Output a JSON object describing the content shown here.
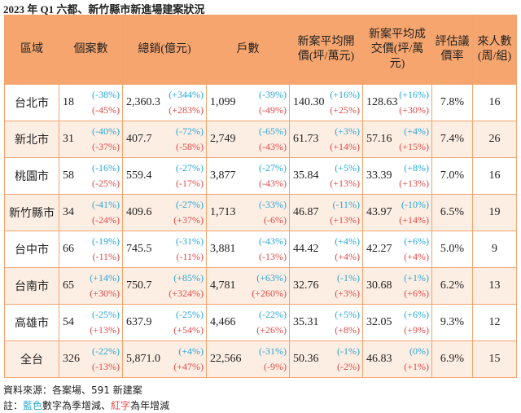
{
  "title": "2023 年 Q1 六都、新竹縣市新進場建案狀況",
  "table": {
    "header": [
      "區域",
      "個案數",
      "總銷(億元)",
      "戶數",
      "新案平均開價(坪/萬元)",
      "新案平均成交價(坪/萬元)",
      "評估議價率",
      "來人數(周/組)"
    ],
    "rows": [
      {
        "region": "台北市",
        "cells": [
          {
            "value": "18",
            "qoq": "(-38%)",
            "yoy": "(-45%)"
          },
          {
            "value": "2,360.3",
            "qoq": "(+344%)",
            "yoy": "(+283%)"
          },
          {
            "value": "1,099",
            "qoq": "(-39%)",
            "yoy": "(-49%)"
          },
          {
            "value": "140.30",
            "qoq": "(+16%)",
            "yoy": "(+25%)"
          },
          {
            "value": "128.63",
            "qoq": "(+16%)",
            "yoy": "(+30%)"
          }
        ],
        "rate": "7.8%",
        "visitors": "16"
      },
      {
        "region": "新北市",
        "cells": [
          {
            "value": "31",
            "qoq": "(-40%)",
            "yoy": "(-37%)"
          },
          {
            "value": "407.7",
            "qoq": "(-72%)",
            "yoy": "(-58%)"
          },
          {
            "value": "2,749",
            "qoq": "(-65%)",
            "yoy": "(-43%)"
          },
          {
            "value": "61.73",
            "qoq": "(+3%)",
            "yoy": "(+14%)"
          },
          {
            "value": "57.16",
            "qoq": "(+4%)",
            "yoy": "(+15%)"
          }
        ],
        "rate": "7.4%",
        "visitors": "26"
      },
      {
        "region": "桃園市",
        "cells": [
          {
            "value": "58",
            "qoq": "(-16%)",
            "yoy": "(-25%)"
          },
          {
            "value": "559.4",
            "qoq": "(-27%)",
            "yoy": "(-17%)"
          },
          {
            "value": "3,877",
            "qoq": "(-27%)",
            "yoy": "(-43%)"
          },
          {
            "value": "35.84",
            "qoq": "(+5%)",
            "yoy": "(+13%)"
          },
          {
            "value": "33.39",
            "qoq": "(+8%)",
            "yoy": "(+13%)"
          }
        ],
        "rate": "7.0%",
        "visitors": "16"
      },
      {
        "region": "新竹縣市",
        "cells": [
          {
            "value": "34",
            "qoq": "(-41%)",
            "yoy": "(-24%)"
          },
          {
            "value": "409.6",
            "qoq": "(-27%)",
            "yoy": "(+37%)"
          },
          {
            "value": "1,713",
            "qoq": "(-33%)",
            "yoy": "(-6%)"
          },
          {
            "value": "46.87",
            "qoq": "(-11%)",
            "yoy": "(+13%)"
          },
          {
            "value": "43.97",
            "qoq": "(-10%)",
            "yoy": "(+14%)"
          }
        ],
        "rate": "6.5%",
        "visitors": "19"
      },
      {
        "region": "台中市",
        "cells": [
          {
            "value": "66",
            "qoq": "(-19%)",
            "yoy": "(-11%)"
          },
          {
            "value": "745.5",
            "qoq": "(-31%)",
            "yoy": "(-11%)"
          },
          {
            "value": "3,881",
            "qoq": "(-43%)",
            "yoy": "(-13%)"
          },
          {
            "value": "44.42",
            "qoq": "(+4%)",
            "yoy": "(+4%)"
          },
          {
            "value": "42.27",
            "qoq": "(+6%)",
            "yoy": "(+4%)"
          }
        ],
        "rate": "5.0%",
        "visitors": "9"
      },
      {
        "region": "台南市",
        "cells": [
          {
            "value": "65",
            "qoq": "(+14%)",
            "yoy": "(+30%)"
          },
          {
            "value": "750.7",
            "qoq": "(+85%)",
            "yoy": "(+324%)"
          },
          {
            "value": "4,781",
            "qoq": "(+63%)",
            "yoy": "(+260%)"
          },
          {
            "value": "32.76",
            "qoq": "(-1%)",
            "yoy": "(+3%)"
          },
          {
            "value": "30.68",
            "qoq": "(+1%)",
            "yoy": "(+6%)"
          }
        ],
        "rate": "6.2%",
        "visitors": "13"
      },
      {
        "region": "高雄市",
        "cells": [
          {
            "value": "54",
            "qoq": "(-25%)",
            "yoy": "(+13%)"
          },
          {
            "value": "637.9",
            "qoq": "(-25%)",
            "yoy": "(+54%)"
          },
          {
            "value": "4,466",
            "qoq": "(-22%)",
            "yoy": "(+26%)"
          },
          {
            "value": "35.31",
            "qoq": "(+5%)",
            "yoy": "(+8%)"
          },
          {
            "value": "32.05",
            "qoq": "(+6%)",
            "yoy": "(+9%)"
          }
        ],
        "rate": "9.3%",
        "visitors": "12"
      },
      {
        "region": "全台",
        "cells": [
          {
            "value": "326",
            "qoq": "(-22%)",
            "yoy": "(-13%)"
          },
          {
            "value": "5,871.0",
            "qoq": "(+4%)",
            "yoy": "(+47%)"
          },
          {
            "value": "22,566",
            "qoq": "(-31%)",
            "yoy": "(-9%)"
          },
          {
            "value": "50.36",
            "qoq": "(-1%)",
            "yoy": "(-2%)"
          },
          {
            "value": "46.83",
            "qoq": "(0%)",
            "yoy": "(+1%)"
          }
        ],
        "rate": "6.9%",
        "visitors": "15"
      }
    ]
  },
  "footer": {
    "source": "資料來源：各案場、591 新建案",
    "note": [
      "註：",
      "藍色",
      "數字為季增減、",
      "紅字",
      "為年增減"
    ]
  }
}
